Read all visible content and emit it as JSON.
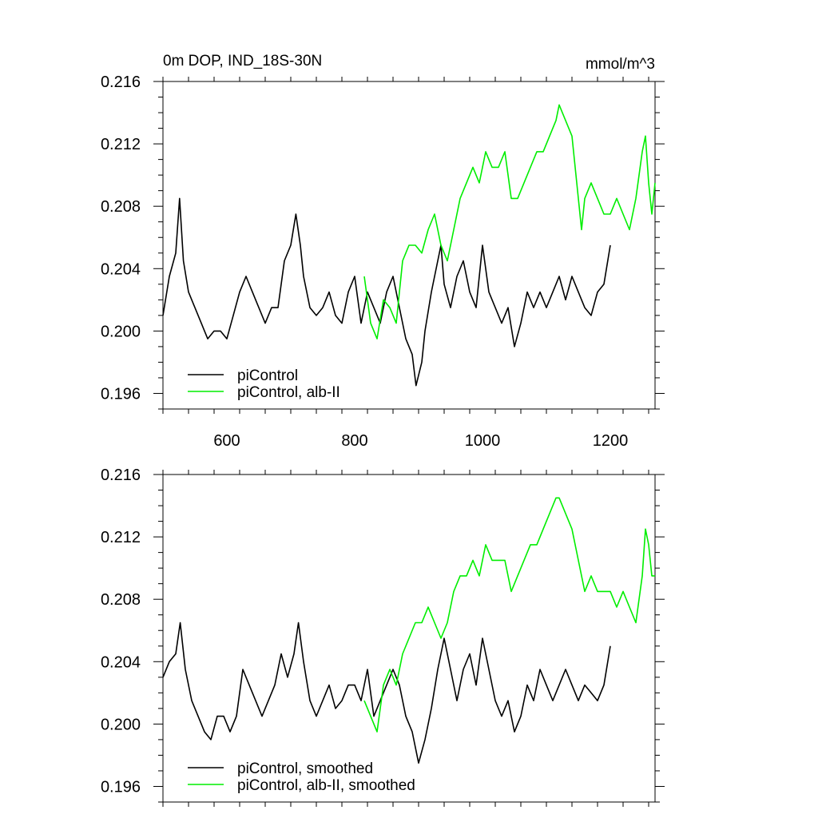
{
  "chart_data": [
    {
      "type": "line",
      "title": "0m DOP, IND_18S-30N",
      "units": "mmol/m^3",
      "xlim": [
        500,
        1270
      ],
      "ylim": [
        0.195,
        0.216
      ],
      "xticks": [
        600,
        800,
        1000,
        1200
      ],
      "xtick_labels": [
        "600",
        "800",
        "1000",
        "1200"
      ],
      "yticks": [
        0.196,
        0.2,
        0.204,
        0.208,
        0.212,
        0.216
      ],
      "ytick_labels": [
        "0.196",
        "0.200",
        "0.204",
        "0.208",
        "0.212",
        "0.216"
      ],
      "legend_placement": "bottom-left",
      "series": [
        {
          "name": "piControl",
          "color": "#000000",
          "x": [
            500,
            510,
            520,
            526,
            532,
            540,
            550,
            560,
            570,
            580,
            590,
            600,
            610,
            620,
            630,
            640,
            650,
            660,
            670,
            680,
            690,
            700,
            708,
            715,
            720,
            730,
            740,
            750,
            760,
            770,
            780,
            790,
            800,
            810,
            820,
            830,
            840,
            850,
            860,
            870,
            880,
            890,
            896,
            905,
            910,
            920,
            930,
            935,
            940,
            950,
            960,
            970,
            980,
            990,
            1000,
            1010,
            1020,
            1030,
            1040,
            1050,
            1060,
            1070,
            1080,
            1090,
            1100,
            1110,
            1120,
            1130,
            1140,
            1150,
            1160,
            1170,
            1180,
            1190,
            1200
          ],
          "y": [
            0.201,
            0.2035,
            0.205,
            0.2085,
            0.2045,
            0.2025,
            0.2015,
            0.2005,
            0.1995,
            0.2,
            0.2,
            0.1995,
            0.201,
            0.2025,
            0.2035,
            0.2025,
            0.2015,
            0.2005,
            0.2015,
            0.2015,
            0.2045,
            0.2055,
            0.2075,
            0.2055,
            0.2035,
            0.2015,
            0.201,
            0.2015,
            0.2025,
            0.201,
            0.2005,
            0.2025,
            0.2035,
            0.2005,
            0.2025,
            0.2015,
            0.2005,
            0.2025,
            0.2035,
            0.2015,
            0.1995,
            0.1985,
            0.1965,
            0.198,
            0.2,
            0.2025,
            0.2045,
            0.2055,
            0.203,
            0.2015,
            0.2035,
            0.2045,
            0.2025,
            0.2015,
            0.2055,
            0.2025,
            0.2015,
            0.2005,
            0.2015,
            0.199,
            0.2005,
            0.2025,
            0.2015,
            0.2025,
            0.2015,
            0.2025,
            0.2035,
            0.202,
            0.2035,
            0.2025,
            0.2015,
            0.201,
            0.2025,
            0.203,
            0.2055
          ]
        },
        {
          "name": "piControl, alb-II",
          "color": "#00ee00",
          "x": [
            815,
            825,
            835,
            845,
            855,
            865,
            875,
            885,
            895,
            905,
            915,
            925,
            935,
            945,
            955,
            965,
            975,
            985,
            995,
            1005,
            1015,
            1025,
            1035,
            1045,
            1055,
            1065,
            1075,
            1085,
            1095,
            1105,
            1115,
            1120,
            1130,
            1140,
            1150,
            1155,
            1160,
            1170,
            1180,
            1190,
            1200,
            1210,
            1220,
            1230,
            1240,
            1250,
            1255,
            1260,
            1265,
            1270
          ],
          "y": [
            0.2035,
            0.2005,
            0.1995,
            0.202,
            0.2015,
            0.2005,
            0.2045,
            0.2055,
            0.2055,
            0.205,
            0.2065,
            0.2075,
            0.2055,
            0.2045,
            0.2065,
            0.2085,
            0.2095,
            0.2105,
            0.2095,
            0.2115,
            0.2105,
            0.2105,
            0.2115,
            0.2085,
            0.2085,
            0.2095,
            0.2105,
            0.2115,
            0.2115,
            0.2125,
            0.2135,
            0.2145,
            0.2135,
            0.2125,
            0.2085,
            0.2065,
            0.2085,
            0.2095,
            0.2085,
            0.2075,
            0.2075,
            0.2085,
            0.2075,
            0.2065,
            0.2085,
            0.2115,
            0.2125,
            0.2095,
            0.2075,
            0.2095
          ]
        }
      ]
    },
    {
      "type": "line",
      "xlim": [
        500,
        1270
      ],
      "ylim": [
        0.195,
        0.216
      ],
      "xticks": [
        600,
        800,
        1000,
        1200
      ],
      "yticks": [
        0.196,
        0.2,
        0.204,
        0.208,
        0.212,
        0.216
      ],
      "ytick_labels": [
        "0.196",
        "0.200",
        "0.204",
        "0.208",
        "0.212",
        "0.216"
      ],
      "legend_placement": "bottom-left",
      "series": [
        {
          "name": "piControl, smoothed",
          "color": "#000000",
          "x": [
            500,
            510,
            520,
            527,
            535,
            545,
            555,
            565,
            575,
            585,
            595,
            605,
            615,
            625,
            635,
            645,
            655,
            665,
            675,
            685,
            695,
            705,
            712,
            720,
            730,
            740,
            750,
            760,
            770,
            780,
            790,
            800,
            810,
            820,
            830,
            840,
            850,
            860,
            870,
            880,
            890,
            900,
            910,
            920,
            930,
            940,
            950,
            960,
            970,
            980,
            990,
            1000,
            1010,
            1020,
            1030,
            1040,
            1050,
            1060,
            1070,
            1080,
            1090,
            1100,
            1110,
            1120,
            1130,
            1140,
            1150,
            1160,
            1170,
            1180,
            1190,
            1200
          ],
          "y": [
            0.203,
            0.204,
            0.2045,
            0.2065,
            0.2035,
            0.2015,
            0.2005,
            0.1995,
            0.199,
            0.2005,
            0.2005,
            0.1995,
            0.2005,
            0.2035,
            0.2025,
            0.2015,
            0.2005,
            0.2015,
            0.2025,
            0.2045,
            0.203,
            0.2045,
            0.2065,
            0.204,
            0.2015,
            0.2005,
            0.2015,
            0.2025,
            0.201,
            0.2015,
            0.2025,
            0.2025,
            0.2015,
            0.2035,
            0.2005,
            0.2015,
            0.2025,
            0.2035,
            0.2025,
            0.2005,
            0.1995,
            0.1975,
            0.199,
            0.201,
            0.2035,
            0.2055,
            0.2035,
            0.2015,
            0.2035,
            0.2045,
            0.2025,
            0.2055,
            0.2035,
            0.2015,
            0.2005,
            0.2015,
            0.1995,
            0.2005,
            0.2025,
            0.2015,
            0.2035,
            0.2025,
            0.2015,
            0.2025,
            0.2035,
            0.2025,
            0.2015,
            0.2025,
            0.202,
            0.2015,
            0.2025,
            0.205
          ]
        },
        {
          "name": "piControl, alb-II, smoothed",
          "color": "#00ee00",
          "x": [
            815,
            825,
            835,
            845,
            855,
            865,
            875,
            885,
            895,
            905,
            915,
            925,
            935,
            945,
            955,
            965,
            975,
            985,
            995,
            1005,
            1015,
            1025,
            1035,
            1045,
            1055,
            1065,
            1075,
            1085,
            1095,
            1105,
            1115,
            1120,
            1130,
            1140,
            1150,
            1160,
            1170,
            1180,
            1190,
            1200,
            1210,
            1220,
            1230,
            1240,
            1250,
            1255,
            1260,
            1265,
            1270
          ],
          "y": [
            0.2015,
            0.2005,
            0.1995,
            0.2025,
            0.2035,
            0.2025,
            0.2045,
            0.2055,
            0.2065,
            0.2065,
            0.2075,
            0.2065,
            0.2055,
            0.2065,
            0.2085,
            0.2095,
            0.2095,
            0.2105,
            0.2095,
            0.2115,
            0.2105,
            0.2105,
            0.2105,
            0.2085,
            0.2095,
            0.2105,
            0.2115,
            0.2115,
            0.2125,
            0.2135,
            0.2145,
            0.2145,
            0.2135,
            0.2125,
            0.2105,
            0.2085,
            0.2095,
            0.2085,
            0.2085,
            0.2085,
            0.2075,
            0.2085,
            0.2075,
            0.2065,
            0.2095,
            0.2125,
            0.2115,
            0.2095,
            0.2095
          ]
        }
      ]
    }
  ]
}
